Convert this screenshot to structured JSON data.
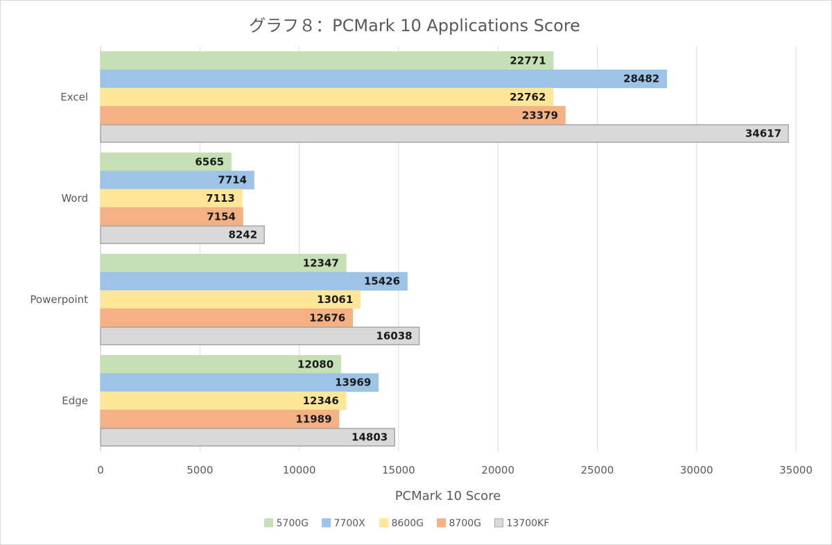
{
  "chart_data": {
    "type": "bar",
    "orientation": "horizontal",
    "title": "グラフ８：PCMark 10 Applications Score",
    "xlabel": "PCMark 10 Score",
    "ylabel": "",
    "xlim": [
      0,
      35000
    ],
    "ticks": [
      "0",
      "5000",
      "10000",
      "15000",
      "20000",
      "25000",
      "30000",
      "35000"
    ],
    "grid": true,
    "legend_position": "bottom",
    "categories": [
      "Excel",
      "Word",
      "Powerpoint",
      "Edge"
    ],
    "series": [
      {
        "name": "5700G",
        "color": "#c5e0b4",
        "border": "#c5e0b4",
        "values": [
          22771,
          6565,
          12347,
          12080
        ]
      },
      {
        "name": "7700X",
        "color": "#9dc3e6",
        "border": "#9dc3e6",
        "values": [
          28482,
          7714,
          15426,
          13969
        ]
      },
      {
        "name": "8600G",
        "color": "#ffe699",
        "border": "#ffe699",
        "values": [
          22762,
          7113,
          13061,
          12346
        ]
      },
      {
        "name": "8700G",
        "color": "#f4b183",
        "border": "#f4b183",
        "values": [
          23379,
          7154,
          12676,
          11989
        ]
      },
      {
        "name": "13700KF",
        "color": "#d9d9d9",
        "border": "#a6a6a6",
        "values": [
          34617,
          8242,
          16038,
          14803
        ]
      }
    ]
  }
}
